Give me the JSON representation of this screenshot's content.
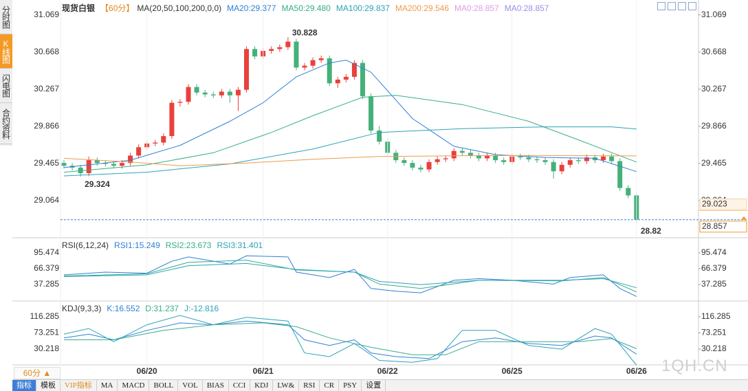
{
  "chart_data": [
    {
      "type": "candlestick",
      "title": "现货白银",
      "period": "【60分】",
      "indicator": "MA(20,50,100,200,0,0)",
      "up_color": "#e8413c",
      "down_color": "#45b07a",
      "ylim": [
        28.67,
        31.17
      ],
      "yticks": [
        29.064,
        29.465,
        29.866,
        30.267,
        30.668,
        31.069
      ],
      "xticks": [
        {
          "value": 10,
          "label": "06/20"
        },
        {
          "value": 24,
          "label": "06/21"
        },
        {
          "value": 39,
          "label": "06/22"
        },
        {
          "value": 54,
          "label": "06/25"
        },
        {
          "value": 69,
          "label": "06/26"
        }
      ],
      "grid": false,
      "open": [
        29.47,
        29.44,
        29.42,
        29.36,
        29.5,
        29.47,
        29.46,
        29.44,
        29.47,
        29.55,
        29.64,
        29.68,
        29.69,
        29.76,
        30.12,
        30.13,
        30.29,
        30.23,
        30.21,
        30.2,
        30.24,
        30.2,
        30.26,
        30.7,
        30.62,
        30.68,
        30.7,
        30.72,
        30.78,
        30.5,
        30.52,
        30.58,
        30.6,
        30.33,
        30.37,
        30.4,
        30.55,
        30.19,
        29.82,
        29.7,
        29.58,
        29.5,
        29.47,
        29.42,
        29.4,
        29.48,
        29.51,
        29.52,
        29.6,
        29.58,
        29.55,
        29.52,
        29.55,
        29.5,
        29.48,
        29.54,
        29.53,
        29.51,
        29.5,
        29.48,
        29.38,
        29.45,
        29.5,
        29.49,
        29.53,
        29.5,
        29.54,
        29.49,
        29.2,
        29.12
      ],
      "high": [
        29.5,
        29.47,
        29.45,
        29.54,
        29.53,
        29.5,
        29.49,
        29.5,
        29.58,
        29.67,
        29.71,
        29.72,
        29.79,
        30.15,
        30.16,
        30.32,
        30.32,
        30.26,
        30.24,
        30.27,
        30.27,
        30.29,
        30.73,
        30.73,
        30.71,
        30.73,
        30.75,
        30.828,
        30.81,
        30.55,
        30.61,
        30.63,
        30.63,
        30.4,
        30.43,
        30.58,
        30.58,
        30.22,
        29.87,
        29.73,
        29.61,
        29.53,
        29.5,
        29.45,
        29.51,
        29.54,
        29.55,
        29.63,
        29.63,
        29.61,
        29.58,
        29.58,
        29.58,
        29.53,
        29.57,
        29.57,
        29.56,
        29.54,
        29.53,
        29.51,
        29.48,
        29.53,
        29.53,
        29.56,
        29.56,
        29.57,
        29.57,
        29.52,
        29.23,
        29.15
      ],
      "low": [
        29.41,
        29.39,
        29.324,
        29.33,
        29.44,
        29.43,
        29.41,
        29.41,
        29.44,
        29.52,
        29.61,
        29.65,
        29.66,
        29.73,
        30.08,
        30.1,
        30.2,
        30.18,
        30.17,
        30.17,
        30.12,
        30.03,
        30.23,
        30.59,
        30.59,
        30.65,
        30.67,
        30.69,
        30.47,
        30.47,
        30.49,
        30.55,
        30.3,
        30.28,
        30.34,
        30.37,
        30.16,
        29.79,
        29.67,
        29.55,
        29.47,
        29.44,
        29.39,
        29.37,
        29.37,
        29.45,
        29.48,
        29.49,
        29.55,
        29.52,
        29.49,
        29.49,
        29.47,
        29.45,
        29.45,
        29.5,
        29.48,
        29.47,
        29.45,
        29.3,
        29.35,
        29.42,
        29.46,
        29.46,
        29.47,
        29.47,
        29.46,
        29.17,
        29.09,
        28.82
      ],
      "close": [
        29.44,
        29.42,
        29.36,
        29.5,
        29.47,
        29.46,
        29.44,
        29.47,
        29.55,
        29.64,
        29.68,
        29.69,
        29.76,
        30.12,
        30.13,
        30.29,
        30.23,
        30.21,
        30.2,
        30.24,
        30.2,
        30.26,
        30.7,
        30.62,
        30.68,
        30.7,
        30.72,
        30.78,
        30.5,
        30.52,
        30.58,
        30.6,
        30.33,
        30.37,
        30.4,
        30.55,
        30.19,
        29.82,
        29.7,
        29.58,
        29.5,
        29.47,
        29.42,
        29.4,
        29.48,
        29.51,
        29.52,
        29.6,
        29.58,
        29.55,
        29.52,
        29.55,
        29.5,
        29.48,
        29.54,
        29.53,
        29.51,
        29.5,
        29.48,
        29.38,
        29.45,
        29.5,
        29.49,
        29.53,
        29.5,
        29.54,
        29.49,
        29.2,
        29.12,
        28.86
      ],
      "series": [
        {
          "name": "MA20:29.377",
          "color": "#2f7fd8",
          "x": [
            0,
            8,
            14,
            20,
            24,
            28,
            32,
            34,
            37,
            42,
            47,
            52,
            58,
            64,
            69
          ],
          "values": [
            29.42,
            29.5,
            29.66,
            29.92,
            30.12,
            30.4,
            30.55,
            30.58,
            30.45,
            29.95,
            29.65,
            29.56,
            29.53,
            29.52,
            29.377
          ]
        },
        {
          "name": "MA50:29.480",
          "color": "#36ad8a",
          "x": [
            0,
            10,
            18,
            25,
            30,
            36,
            40,
            48,
            56,
            62,
            69
          ],
          "values": [
            29.37,
            29.45,
            29.58,
            29.8,
            29.98,
            30.18,
            30.2,
            30.1,
            29.92,
            29.72,
            29.48
          ]
        },
        {
          "name": "MA100:29.837",
          "color": "#2aa3b8",
          "x": [
            0,
            10,
            20,
            30,
            38,
            48,
            58,
            66,
            69
          ],
          "values": [
            29.33,
            29.37,
            29.46,
            29.62,
            29.8,
            29.84,
            29.86,
            29.86,
            29.837
          ]
        },
        {
          "name": "MA200:29.546",
          "color": "#ef9a4a",
          "x": [
            0,
            8,
            14,
            22,
            30,
            38,
            50,
            60,
            69
          ],
          "values": [
            29.52,
            29.48,
            29.44,
            29.47,
            29.51,
            29.54,
            29.55,
            29.55,
            29.546
          ]
        }
      ],
      "legend_notes": [
        {
          "text": "MA0:28.857",
          "color": "#e29be0"
        },
        {
          "text": "MA0:28.857",
          "color": "#9d8ee6"
        }
      ],
      "annotations": [
        {
          "x": 27,
          "y": 30.828,
          "color": "#e8413c"
        },
        {
          "x": 2,
          "y": 29.324,
          "color": "#45b07a"
        },
        {
          "x": 69,
          "y": 28.82,
          "color": "#45b07a"
        }
      ],
      "last_price": 28.857,
      "ref_price": 29.023
    },
    {
      "type": "line",
      "title": "RSI(6,12,24)",
      "ylim": [
        8.19,
        120.77
      ],
      "yticks": [
        37.285,
        66.379,
        95.474
      ],
      "series": [
        {
          "name": "RSI1:15.249",
          "color": "#2f7fd8",
          "x": [
            0,
            5,
            10,
            13,
            15,
            20,
            22,
            27,
            28,
            32,
            35,
            37,
            40,
            43,
            47,
            50,
            54,
            59,
            61,
            65,
            67,
            69
          ],
          "values": [
            55,
            60,
            58,
            80,
            88,
            75,
            90,
            88,
            60,
            50,
            65,
            30,
            25,
            22,
            45,
            48,
            45,
            38,
            50,
            55,
            30,
            15.249
          ]
        },
        {
          "name": "RSI2:23.673",
          "color": "#36ad8a",
          "x": [
            0,
            10,
            15,
            22,
            28,
            35,
            38,
            43,
            50,
            60,
            65,
            69
          ],
          "values": [
            53,
            57,
            78,
            82,
            64,
            60,
            38,
            30,
            45,
            44,
            50,
            23.673
          ]
        },
        {
          "name": "RSI3:31.401",
          "color": "#2aa3b8",
          "x": [
            0,
            10,
            15,
            22,
            28,
            35,
            38,
            43,
            50,
            60,
            65,
            69
          ],
          "values": [
            52,
            55,
            72,
            76,
            65,
            60,
            43,
            37,
            45,
            45,
            48,
            31.401
          ]
        }
      ]
    },
    {
      "type": "line",
      "title": "KDJ(9,3,3)",
      "ylim": [
        -10.07,
        154.74
      ],
      "yticks": [
        30.218,
        73.251,
        116.285
      ],
      "series": [
        {
          "name": "K:16.552",
          "color": "#2f7fd8",
          "x": [
            0,
            3,
            6,
            10,
            14,
            18,
            22,
            27,
            29,
            32,
            35,
            37,
            40,
            44,
            48,
            52,
            56,
            60,
            64,
            66,
            69
          ],
          "values": [
            60,
            70,
            55,
            80,
            100,
            95,
            105,
            95,
            55,
            40,
            55,
            20,
            10,
            5,
            50,
            60,
            45,
            40,
            65,
            60,
            16.552
          ]
        },
        {
          "name": "D:31.237",
          "color": "#36ad8a",
          "x": [
            0,
            6,
            12,
            18,
            24,
            28,
            32,
            37,
            42,
            46,
            50,
            56,
            62,
            66,
            69
          ],
          "values": [
            55,
            55,
            80,
            95,
            100,
            90,
            60,
            35,
            15,
            15,
            50,
            50,
            50,
            58,
            31.237
          ]
        },
        {
          "name": "J:-12.816",
          "color": "#2aa3b8",
          "x": [
            0,
            3,
            6,
            10,
            14,
            18,
            22,
            27,
            29,
            32,
            35,
            38,
            42,
            45,
            48,
            52,
            56,
            60,
            64,
            66,
            69
          ],
          "values": [
            70,
            85,
            50,
            95,
            120,
            95,
            115,
            105,
            20,
            10,
            45,
            0,
            -5,
            5,
            80,
            80,
            40,
            30,
            85,
            70,
            -12.816
          ]
        }
      ]
    }
  ],
  "sidebar": [
    "分时图",
    "K线图",
    "闪电图",
    "合约资料"
  ],
  "period_button": "60分 ▲",
  "toolbar": [
    "指标",
    "模板",
    "VIP指标",
    "MA",
    "MACD",
    "BOLL",
    "VOL",
    "BIAS",
    "CCI",
    "KDJ",
    "LW&",
    "RSI",
    "CR",
    "PSY",
    "设置"
  ],
  "watermark": "1QH.CN"
}
